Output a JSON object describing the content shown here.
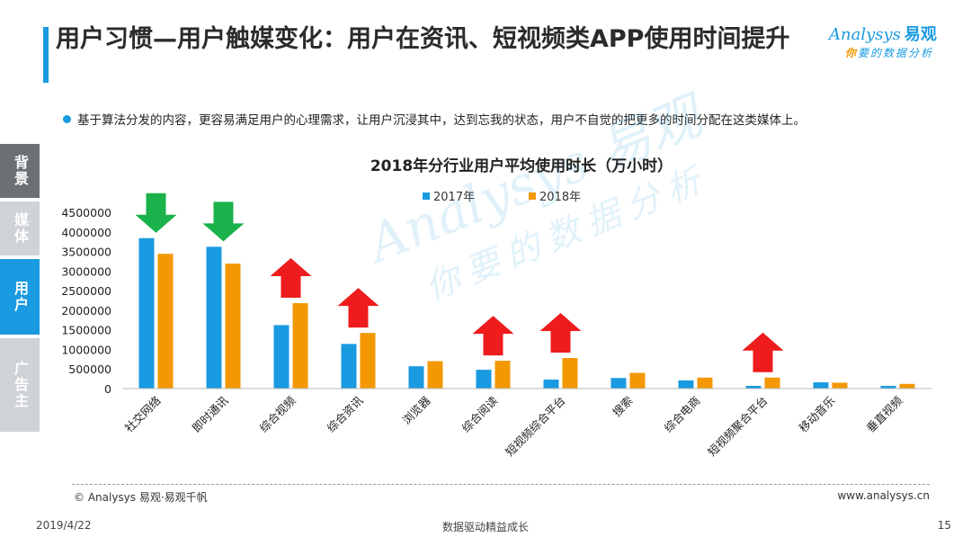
{
  "header": {
    "title": "用户习惯—用户触媒变化：用户在资讯、短视频类APP使用时间提升"
  },
  "logo": {
    "brand": "nalysys",
    "brand_initial": "A",
    "brand_cn": "易观",
    "tagline_first": "你",
    "tagline_rest": "要的数据分析"
  },
  "bullet": {
    "text": "基于算法分发的内容，更容易满足用户的心理需求，让用户沉浸其中，达到忘我的状态，用户不自觉的把更多的时间分配在这类媒体上。"
  },
  "side_nav": {
    "items": [
      "背景",
      "媒体",
      "用户",
      "广告主"
    ],
    "active_index": 2
  },
  "watermark": {
    "main": "Analysys 易观",
    "sub": "你要的数据分析"
  },
  "chart_data": {
    "type": "bar",
    "title": "2018年分行业用户平均使用时长（万小时）",
    "categories": [
      "社交网络",
      "即时通讯",
      "综合视频",
      "综合资讯",
      "浏览器",
      "综合阅读",
      "短视频综合平台",
      "搜索",
      "综合电商",
      "短视频聚合平台",
      "移动音乐",
      "垂直视频"
    ],
    "series": [
      {
        "name": "2017年",
        "color": "#1a9ae0",
        "values": [
          3840000,
          3620000,
          1620000,
          1140000,
          570000,
          480000,
          230000,
          270000,
          210000,
          70000,
          160000,
          70000
        ]
      },
      {
        "name": "2018年",
        "color": "#f39800",
        "values": [
          3440000,
          3190000,
          2180000,
          1420000,
          700000,
          710000,
          780000,
          400000,
          280000,
          280000,
          150000,
          120000
        ]
      }
    ],
    "ylim": [
      0,
      4500000
    ],
    "yticks": [
      0,
      500000,
      1000000,
      1500000,
      2000000,
      2500000,
      3000000,
      3500000,
      4000000,
      4500000
    ],
    "legend_position": "top-center",
    "grid": false,
    "trend_arrows": [
      {
        "category": "社交网络",
        "direction": "down",
        "color": "#1ab24a"
      },
      {
        "category": "即时通讯",
        "direction": "down",
        "color": "#1ab24a"
      },
      {
        "category": "综合视频",
        "direction": "up",
        "color": "#ee1c1c"
      },
      {
        "category": "综合资讯",
        "direction": "up",
        "color": "#ee1c1c"
      },
      {
        "category": "综合阅读",
        "direction": "up",
        "color": "#ee1c1c"
      },
      {
        "category": "短视频综合平台",
        "direction": "up",
        "color": "#ee1c1c"
      },
      {
        "category": "短视频聚合平台",
        "direction": "up",
        "color": "#ee1c1c"
      }
    ]
  },
  "footer": {
    "copyright": "© Analysys 易观·易观千帆",
    "website": "www.analysys.cn",
    "date": "2019/4/22",
    "slogan": "数据驱动精益成长",
    "page_number": "15"
  }
}
